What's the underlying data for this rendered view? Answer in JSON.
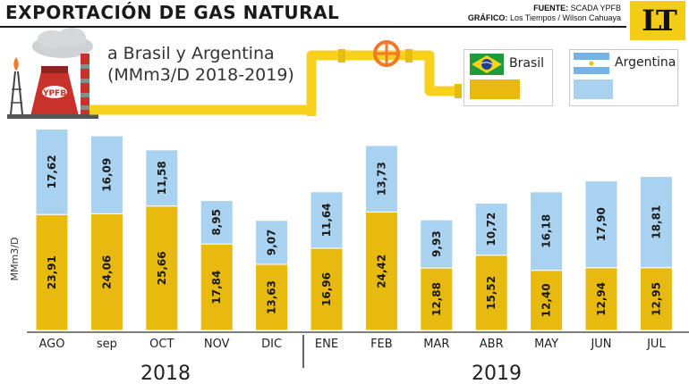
{
  "header": {
    "title": "EXPORTACIÓN DE GAS NATURAL",
    "source_label": "FUENTE:",
    "source_value": "SCADA YPFB",
    "graphic_label": "GRÁFICO:",
    "graphic_value": "Los Tiempos / Wilson Cahuaya",
    "logo_text": "LT"
  },
  "illustration": {
    "plant_label": "YPFB"
  },
  "subtitle": {
    "line1": "a Brasil y Argentina",
    "line2": "(MMm3/D 2018-2019)"
  },
  "legend": [
    {
      "name": "Brasil",
      "color": "#e8b90f",
      "flag": "brazil-flag-icon"
    },
    {
      "name": "Argentina",
      "color": "#a8d2f0",
      "flag": "argentina-flag-icon"
    }
  ],
  "colors": {
    "brasil": "#e8b90f",
    "argentina": "#a8d2f0",
    "pipe": "#f7d11e",
    "valve": "#f07a2a",
    "plant": "#c8322b"
  },
  "chart_data": {
    "type": "bar",
    "stacked": true,
    "ylabel": "MMm3/D",
    "categories": [
      "AGO",
      "sep",
      "OCT",
      "NOV",
      "DIC",
      "ENE",
      "FEB",
      "MAR",
      "ABR",
      "MAY",
      "JUN",
      "JUL"
    ],
    "value_labels": {
      "Brasil": [
        "23,91",
        "24,06",
        "25,66",
        "17,84",
        "13,63",
        "16,96",
        "24,42",
        "12,88",
        "15,52",
        "12,40",
        "12,94",
        "12,95"
      ],
      "Argentina": [
        "17,62",
        "16,09",
        "11,58",
        "8,95",
        "9,07",
        "11,64",
        "13,73",
        "9,93",
        "10,72",
        "16,18",
        "17,90",
        "18,81"
      ]
    },
    "series": [
      {
        "name": "Brasil",
        "values": [
          23.91,
          24.06,
          25.66,
          17.84,
          13.63,
          16.96,
          24.42,
          12.88,
          15.52,
          12.4,
          12.94,
          12.95
        ]
      },
      {
        "name": "Argentina",
        "values": [
          17.62,
          16.09,
          11.58,
          8.95,
          9.07,
          11.64,
          13.73,
          9.93,
          10.72,
          16.18,
          17.9,
          18.81
        ]
      }
    ],
    "groups": [
      {
        "label": "2018",
        "categories": [
          "AGO",
          "sep",
          "OCT",
          "NOV",
          "DIC"
        ]
      },
      {
        "label": "2019",
        "categories": [
          "ENE",
          "FEB",
          "MAR",
          "ABR",
          "MAY",
          "JUN",
          "JUL"
        ]
      }
    ],
    "ylim": [
      0,
      42
    ],
    "grid": false,
    "legend_position": "top-right"
  }
}
